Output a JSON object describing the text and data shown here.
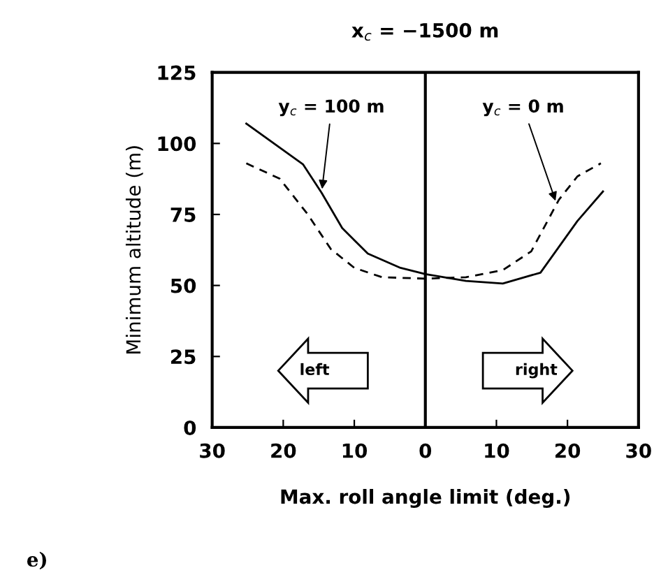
{
  "chart_data": {
    "type": "line",
    "title": "x$_{c}$ = −1500 m",
    "xlabel": "Max. roll angle limit (deg.)",
    "ylabel": "Minimum altitude (m)",
    "series": [
      {
        "color": "#000000",
        "line_style": "solid",
        "x": [
          -25.2,
          -17.2,
          -14.6,
          -11.7,
          -8.1,
          -3.5,
          0,
          5.7,
          10.9,
          16.2,
          18.8,
          21.4,
          25
        ],
        "values": [
          107,
          92.6,
          82.6,
          70.2,
          61.2,
          56.2,
          54,
          51.6,
          50.7,
          54.5,
          63.6,
          72.7,
          83.1
        ]
      },
      {
        "color": "#000000",
        "line_style": "dashed",
        "x": [
          -25.2,
          -20.5,
          -16.6,
          -13.3,
          -10,
          -6.1,
          0,
          5.7,
          10.9,
          14.9,
          18.8,
          21.4,
          24.7
        ],
        "values": [
          93,
          87.6,
          75.2,
          62.8,
          56.2,
          52.9,
          52.4,
          52.9,
          55.4,
          62,
          80.2,
          88.4,
          93
        ]
      }
    ],
    "xlim": [
      -30,
      30
    ],
    "ylim": [
      0,
      125
    ],
    "xticks": [
      {
        "value": -30,
        "label": "30"
      },
      {
        "value": -20,
        "label": "20"
      },
      {
        "value": -10,
        "label": "10"
      },
      0,
      10,
      20,
      30
    ],
    "yticks": [
      0,
      25,
      50,
      75,
      100,
      125
    ],
    "ref_lines": [
      {
        "axis": "x",
        "value": 0,
        "color": "#000000",
        "line_style": "solid"
      }
    ],
    "annotations": [
      {
        "text": "y$_{c}$ = 100 m",
        "x": -14.6,
        "y": 82.6
      },
      {
        "text": "y$_{c}$ = 0 m",
        "x": 18.5,
        "y": 78.5
      },
      "left",
      "right",
      "e)"
    ],
    "grid": false
  }
}
